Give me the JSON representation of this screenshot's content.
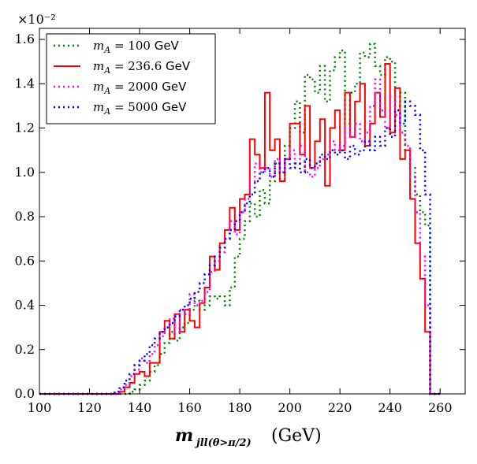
{
  "chart_data": {
    "type": "step-histogram",
    "title": "",
    "xlabel": "m_jll(θ>π/2) (GeV)",
    "xlabel_main": "m",
    "xlabel_sub": "jll(θ>π/2)",
    "xlabel_unit": "(GeV)",
    "ylabel": "",
    "y_multiplier": "×10⁻²",
    "xlim": [
      100,
      270
    ],
    "ylim": [
      0.0,
      1.65
    ],
    "xticks": [
      100,
      120,
      140,
      160,
      180,
      200,
      220,
      240,
      260
    ],
    "yticks": [
      0.0,
      0.2,
      0.4,
      0.6,
      0.8,
      1.0,
      1.2,
      1.4,
      1.6
    ],
    "ytick_labels": [
      "0.0",
      "0.2",
      "0.4",
      "0.6",
      "0.8",
      "1.0",
      "1.2",
      "1.4",
      "1.6"
    ],
    "bin_edges_start": 100,
    "bin_width": 2,
    "legend_position": "top-left",
    "series": [
      {
        "name": "mA = 100 GeV",
        "label_math": "m",
        "label_sub": "A",
        "label_value": " = 100",
        "label_unit": "GeV",
        "color": "#008000",
        "style": "dotted",
        "values": [
          0.0,
          0.0,
          0.0,
          0.0,
          0.0,
          0.0,
          0.0,
          0.0,
          0.0,
          0.0,
          0.0,
          0.0,
          0.0,
          0.0,
          0.0,
          0.0,
          0.0,
          0.0,
          0.01,
          0.02,
          0.04,
          0.06,
          0.1,
          0.13,
          0.18,
          0.23,
          0.28,
          0.24,
          0.3,
          0.32,
          0.38,
          0.42,
          0.38,
          0.4,
          0.44,
          0.43,
          0.44,
          0.4,
          0.48,
          0.62,
          0.7,
          0.78,
          0.86,
          0.8,
          0.92,
          0.86,
          0.96,
          1.04,
          0.96,
          1.12,
          1.2,
          1.32,
          1.18,
          1.44,
          1.42,
          1.36,
          1.48,
          1.32,
          1.46,
          1.52,
          1.55,
          1.22,
          1.36,
          1.4,
          1.54,
          1.52,
          1.58,
          1.48,
          1.44,
          1.52,
          1.5,
          1.3,
          1.36,
          1.1,
          1.02,
          0.9,
          0.82,
          0.76,
          0.0,
          0.0
        ]
      },
      {
        "name": "mA = 236.6 GeV",
        "label_math": "m",
        "label_sub": "A",
        "label_value": " = 236.6",
        "label_unit": "GeV",
        "color": "#ff0000",
        "style": "solid",
        "values": [
          0.0,
          0.0,
          0.0,
          0.0,
          0.0,
          0.0,
          0.0,
          0.0,
          0.0,
          0.0,
          0.0,
          0.0,
          0.0,
          0.0,
          0.0,
          0.0,
          0.01,
          0.03,
          0.05,
          0.09,
          0.1,
          0.08,
          0.14,
          0.14,
          0.28,
          0.33,
          0.25,
          0.36,
          0.28,
          0.38,
          0.33,
          0.3,
          0.41,
          0.48,
          0.62,
          0.56,
          0.68,
          0.74,
          0.84,
          0.74,
          0.88,
          0.9,
          1.15,
          1.08,
          1.02,
          1.36,
          1.1,
          1.15,
          0.96,
          1.06,
          1.22,
          1.22,
          1.08,
          1.3,
          1.02,
          1.14,
          1.24,
          0.94,
          1.2,
          1.28,
          1.1,
          1.36,
          1.16,
          1.32,
          1.4,
          1.12,
          1.22,
          1.36,
          1.25,
          1.49,
          1.18,
          1.38,
          1.06,
          1.1,
          0.88,
          0.68,
          0.52,
          0.28,
          0.0,
          0.0
        ]
      },
      {
        "name": "mA = 2000 GeV",
        "label_math": "m",
        "label_sub": "A",
        "label_value": " = 2000",
        "label_unit": "GeV",
        "color": "#ff00ff",
        "style": "dotted",
        "values": [
          0.0,
          0.0,
          0.0,
          0.0,
          0.0,
          0.0,
          0.0,
          0.0,
          0.0,
          0.0,
          0.0,
          0.0,
          0.0,
          0.0,
          0.0,
          0.0,
          0.02,
          0.04,
          0.08,
          0.11,
          0.16,
          0.14,
          0.18,
          0.22,
          0.26,
          0.3,
          0.34,
          0.28,
          0.38,
          0.36,
          0.45,
          0.4,
          0.42,
          0.46,
          0.55,
          0.6,
          0.64,
          0.7,
          0.78,
          0.72,
          0.82,
          0.88,
          0.96,
          1.04,
          1.0,
          1.02,
          0.98,
          1.06,
          1.0,
          1.06,
          1.1,
          1.04,
          1.12,
          1.0,
          0.98,
          1.02,
          1.06,
          1.08,
          1.14,
          1.1,
          1.12,
          1.2,
          1.16,
          1.22,
          1.14,
          1.18,
          1.3,
          1.42,
          1.28,
          1.2,
          1.34,
          1.26,
          1.18,
          1.12,
          0.98,
          0.82,
          0.62,
          0.4,
          0.0,
          0.0
        ]
      },
      {
        "name": "mA = 5000 GeV",
        "label_math": "m",
        "label_sub": "A",
        "label_value": " = 5000",
        "label_unit": "GeV",
        "color": "#0000ff",
        "style": "dotted",
        "values": [
          0.0,
          0.0,
          0.0,
          0.0,
          0.0,
          0.0,
          0.0,
          0.0,
          0.0,
          0.0,
          0.0,
          0.0,
          0.0,
          0.0,
          0.0,
          0.01,
          0.03,
          0.06,
          0.09,
          0.13,
          0.15,
          0.18,
          0.22,
          0.25,
          0.28,
          0.3,
          0.32,
          0.35,
          0.38,
          0.4,
          0.43,
          0.46,
          0.5,
          0.54,
          0.58,
          0.62,
          0.66,
          0.7,
          0.74,
          0.78,
          0.82,
          0.86,
          0.9,
          0.96,
          1.0,
          1.02,
          0.98,
          1.04,
          1.0,
          1.06,
          1.02,
          1.04,
          1.0,
          1.06,
          1.02,
          1.04,
          1.08,
          1.06,
          1.1,
          1.08,
          1.1,
          1.06,
          1.12,
          1.08,
          1.1,
          1.14,
          1.1,
          1.16,
          1.12,
          1.2,
          1.16,
          1.28,
          1.22,
          1.32,
          1.3,
          1.26,
          1.1,
          0.9,
          0.0,
          0.0
        ]
      }
    ]
  }
}
